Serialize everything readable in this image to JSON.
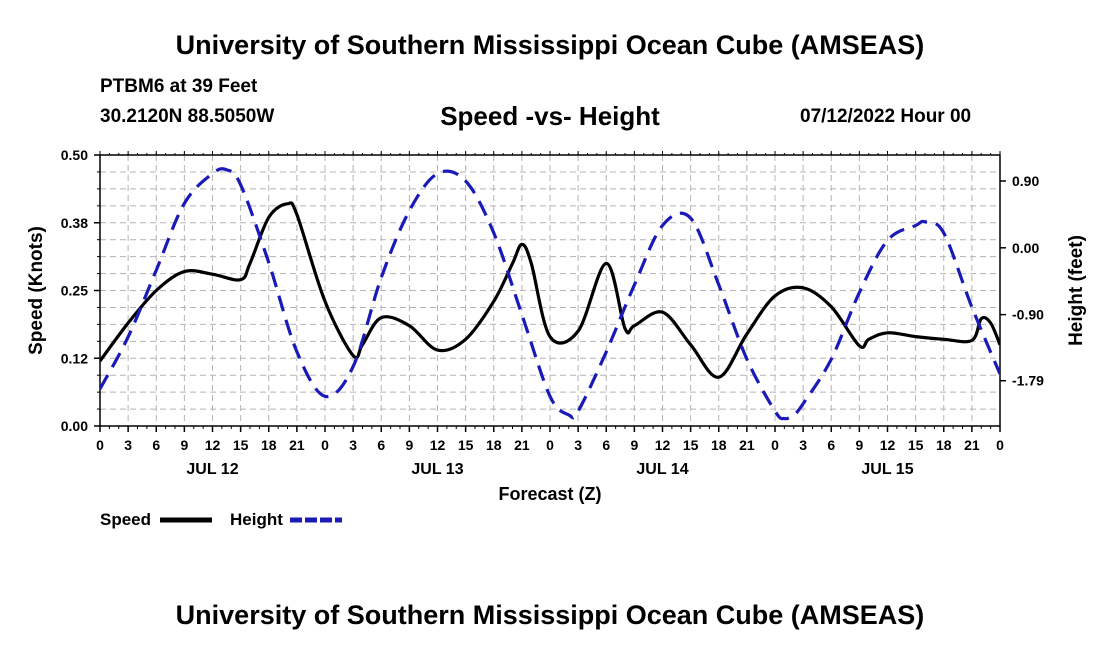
{
  "header": {
    "title": "University of Southern Mississippi Ocean Cube (AMSEAS)",
    "station": "PTBM6 at 39 Feet",
    "coords": "30.2120N  88.5050W",
    "plot_title": "Speed -vs- Height",
    "date": "07/12/2022 Hour 00"
  },
  "footer": {
    "title": "University of Southern Mississippi Ocean Cube (AMSEAS)"
  },
  "legend": {
    "speed_label": "Speed",
    "height_label": "Height"
  },
  "colors": {
    "speed": "#000000",
    "height": "#1a1ab8",
    "grid": "#b4b4b4"
  },
  "chart_data": {
    "type": "line",
    "title": "Speed -vs- Height",
    "xlabel": "Forecast (Z)",
    "ylabel_left": "Speed (Knots)",
    "ylabel_right": "Height (feet)",
    "x_range_hours": [
      0,
      96
    ],
    "ylim_left": [
      0,
      0.5
    ],
    "ylim_right": [
      -2.4,
      1.25
    ],
    "left_ticks": [
      "0.00",
      "0.12",
      "0.25",
      "0.38",
      "0.50"
    ],
    "right_ticks": [
      {
        "label": "0.90",
        "value": 0.9
      },
      {
        "label": "0.00",
        "value": 0.0
      },
      {
        "label": "-0.90",
        "value": -0.9
      },
      {
        "label": "-1.79",
        "value": -1.79
      }
    ],
    "hour_ticks": [
      "0",
      "3",
      "6",
      "9",
      "12",
      "15",
      "18",
      "21",
      "0",
      "3",
      "6",
      "9",
      "12",
      "15",
      "18",
      "21",
      "0",
      "3",
      "6",
      "9",
      "12",
      "15",
      "18",
      "21",
      "0",
      "3",
      "6",
      "9",
      "12",
      "15",
      "18",
      "21",
      "0"
    ],
    "day_labels": [
      {
        "label": "JUL 12",
        "hour": 12
      },
      {
        "label": "JUL 13",
        "hour": 36
      },
      {
        "label": "JUL 14",
        "hour": 60
      },
      {
        "label": "JUL 15",
        "hour": 84
      }
    ],
    "series": [
      {
        "name": "Speed",
        "axis": "left",
        "style": "solid",
        "x": [
          0,
          3,
          6,
          9,
          12,
          15,
          16,
          18,
          20,
          21,
          24,
          27,
          28,
          30,
          33,
          36,
          39,
          42,
          44,
          45,
          46,
          48,
          51,
          54,
          56,
          57,
          60,
          63,
          66,
          69,
          72,
          75,
          78,
          81,
          82,
          84,
          87,
          90,
          93,
          94,
          95,
          96
        ],
        "values": [
          0.12,
          0.19,
          0.25,
          0.285,
          0.28,
          0.27,
          0.3,
          0.385,
          0.41,
          0.39,
          0.23,
          0.13,
          0.15,
          0.2,
          0.185,
          0.14,
          0.16,
          0.23,
          0.3,
          0.335,
          0.3,
          0.165,
          0.175,
          0.3,
          0.18,
          0.185,
          0.21,
          0.15,
          0.09,
          0.17,
          0.24,
          0.255,
          0.22,
          0.148,
          0.16,
          0.172,
          0.165,
          0.16,
          0.158,
          0.198,
          0.19,
          0.15
        ]
      },
      {
        "name": "Height",
        "axis": "right",
        "style": "dashed",
        "x": [
          0,
          3,
          6,
          9,
          12,
          13.5,
          15,
          18,
          21,
          24,
          27,
          30,
          33,
          36,
          39,
          42,
          45,
          48,
          50,
          51,
          54,
          57,
          60,
          63,
          66,
          69,
          72,
          73,
          74,
          75,
          78,
          81,
          84,
          87,
          88,
          90,
          93,
          96
        ],
        "values": [
          -1.9,
          -1.2,
          -0.3,
          0.6,
          1.0,
          1.05,
          0.85,
          -0.2,
          -1.4,
          -2.0,
          -1.6,
          -0.4,
          0.5,
          1.0,
          0.9,
          0.2,
          -0.9,
          -2.0,
          -2.25,
          -2.2,
          -1.4,
          -0.5,
          0.3,
          0.4,
          -0.5,
          -1.5,
          -2.2,
          -2.3,
          -2.25,
          -2.1,
          -1.5,
          -0.6,
          0.1,
          0.3,
          0.35,
          0.2,
          -0.8,
          -1.7
        ]
      }
    ]
  }
}
